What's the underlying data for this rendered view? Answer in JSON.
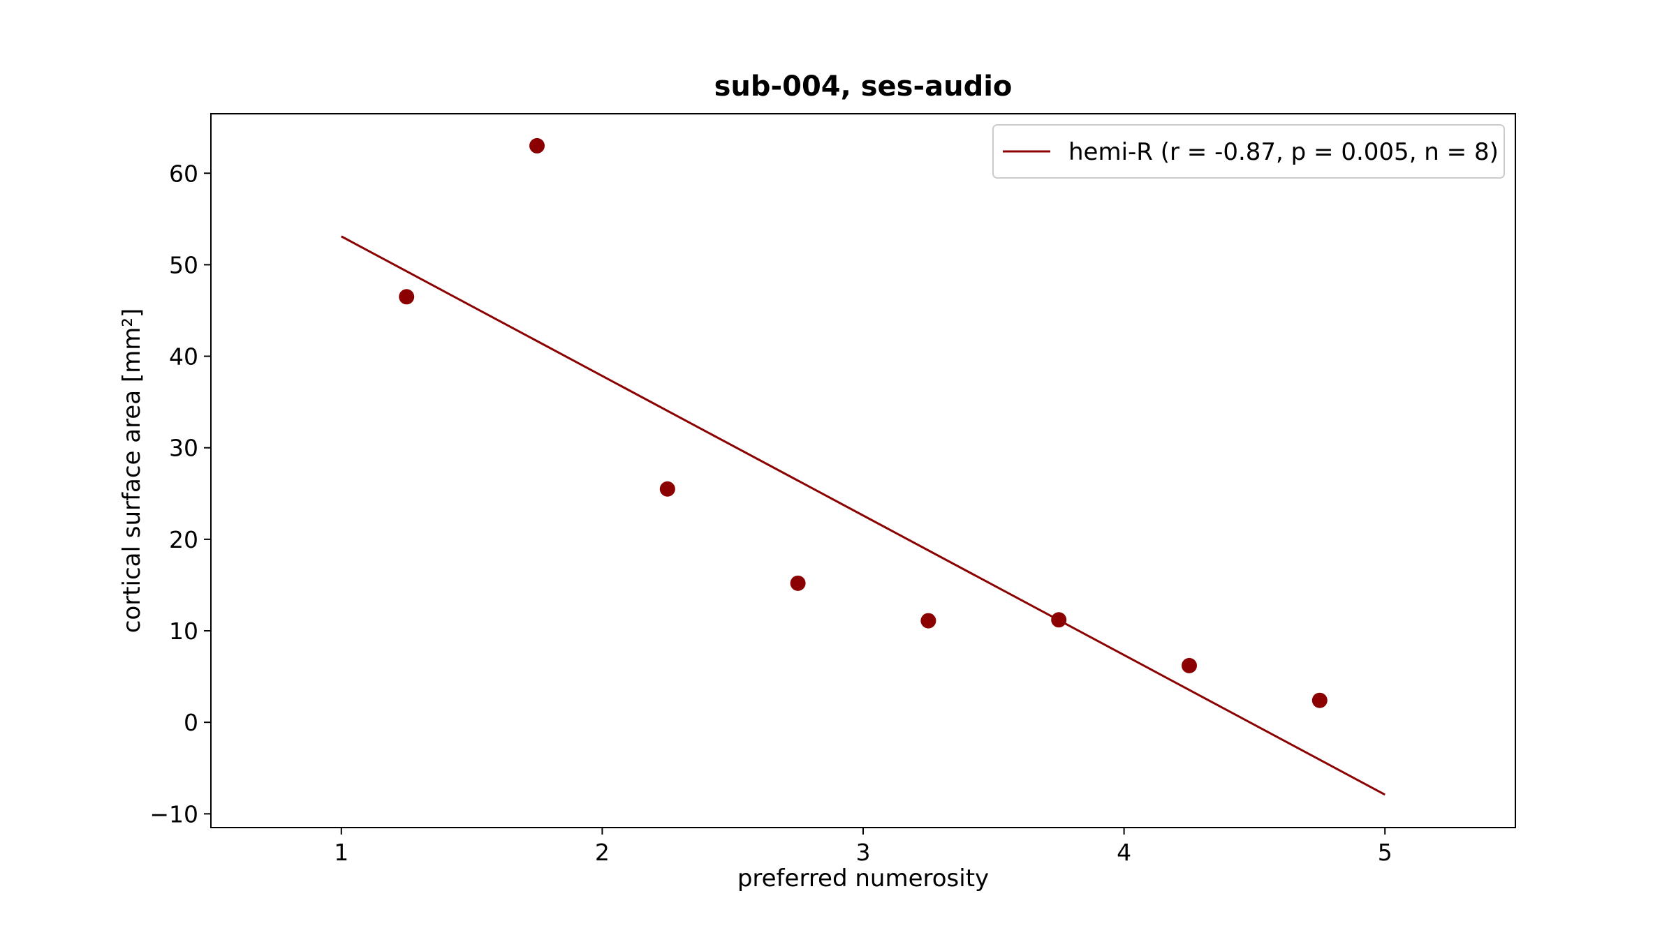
{
  "chart_data": {
    "type": "scatter",
    "title": "sub-004, ses-audio",
    "xlabel": "preferred numerosity",
    "ylabel": "cortical surface area [mm²]",
    "xlim": [
      0.5,
      5.5
    ],
    "ylim": [
      -11.5,
      66.5
    ],
    "xticks": [
      1,
      2,
      3,
      4,
      5
    ],
    "xtick_labels": [
      "1",
      "2",
      "3",
      "4",
      "5"
    ],
    "yticks": [
      -10,
      0,
      10,
      20,
      30,
      40,
      50,
      60
    ],
    "ytick_labels": [
      "−10",
      "0",
      "10",
      "20",
      "30",
      "40",
      "50",
      "60"
    ],
    "grid": false,
    "legend_position": "top-right",
    "series": [
      {
        "name": "hemi-R (r = -0.87, p = 0.005, n = 8)",
        "color": "#8b0000",
        "points": [
          {
            "x": 1.25,
            "y": 46.5
          },
          {
            "x": 1.75,
            "y": 63.0
          },
          {
            "x": 2.25,
            "y": 25.5
          },
          {
            "x": 2.75,
            "y": 15.2
          },
          {
            "x": 3.25,
            "y": 11.1
          },
          {
            "x": 3.75,
            "y": 11.2
          },
          {
            "x": 4.25,
            "y": 6.2
          },
          {
            "x": 4.75,
            "y": 2.4
          }
        ],
        "fit_line": [
          {
            "x": 1.0,
            "y": 53.1
          },
          {
            "x": 5.0,
            "y": -7.9
          }
        ]
      }
    ]
  }
}
